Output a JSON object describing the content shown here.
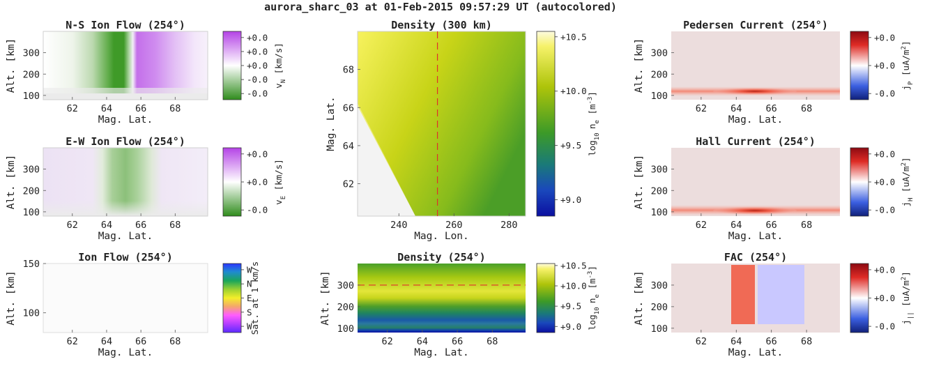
{
  "figure_title": "aurora_sharc_03 at 01-Feb-2015 09:57:29 UT (autocolored)",
  "colors": {
    "green": "#3f9a28",
    "purple": "#c470ea",
    "background_gray": "#ebebeb",
    "current_base": "#ecdddd",
    "current_red": "#ee5a45",
    "current_blue": "#c9c8ff",
    "dashed_line": "#e0302a"
  },
  "chart_data": [
    {
      "id": "ns-ion-flow",
      "type": "heatmap",
      "title": "N-S Ion Flow (254°)",
      "xlabel": "Mag. Lat.",
      "ylabel": "Alt. [km]",
      "xlim": [
        60.3,
        69.9
      ],
      "ylim": [
        80,
        400
      ],
      "xticks": [
        "62",
        "64",
        "66",
        "68"
      ],
      "yticks": [
        "100",
        "200",
        "300"
      ],
      "colorbar": {
        "colormap": "green-white-purple",
        "label": "v_N [km/s]",
        "ticks": [
          "+0.0",
          "+0.0",
          "+0.0",
          "-0.0",
          "-0.0"
        ]
      },
      "description": "flow reverses from southward (green) to northward (purple) near 65° latitude above ~120 km"
    },
    {
      "id": "ew-ion-flow",
      "type": "heatmap",
      "title": "E-W Ion Flow (254°)",
      "xlabel": "Mag. Lat.",
      "ylabel": "Alt. [km]",
      "xlim": [
        60.3,
        69.9
      ],
      "ylim": [
        80,
        400
      ],
      "xticks": [
        "62",
        "64",
        "66",
        "68"
      ],
      "yticks": [
        "100",
        "200",
        "300"
      ],
      "colorbar": {
        "colormap": "green-white-purple",
        "label": "v_E [km/s]",
        "ticks": [
          "+0.0",
          "+0.0",
          "-0.0"
        ]
      },
      "description": "weak westward (green) band centred near 65° latitude"
    },
    {
      "id": "ion-flow",
      "type": "heatmap",
      "title": "Ion Flow (254°)",
      "xlabel": "Mag. Lat.",
      "ylabel": "Alt. [km]",
      "xlim": [
        60.3,
        69.9
      ],
      "ylim": [
        80,
        150
      ],
      "xticks": [
        "62",
        "64",
        "66",
        "68"
      ],
      "yticks": [
        "100",
        "150"
      ],
      "colorbar": {
        "colormap": "direction-wheel",
        "label": "Sat. at 1 km/s",
        "ticks": [
          "W",
          "N",
          "E",
          "S",
          "W"
        ]
      }
    },
    {
      "id": "density-300km",
      "type": "heatmap",
      "title": "Density (300 km)",
      "xlabel": "Mag. Lon.",
      "ylabel": "Mag. Lat.",
      "xlim": [
        225,
        286
      ],
      "ylim": [
        60.3,
        70.0
      ],
      "xticks": [
        "240",
        "260",
        "280"
      ],
      "yticks": [
        "62",
        "64",
        "66",
        "68"
      ],
      "marker_line": {
        "axis": "x",
        "value": 254,
        "style": "dashed"
      },
      "colorbar": {
        "colormap": "blue-green-yellow",
        "label": "log10 n_e [m^-3]",
        "range": [
          8.85,
          10.55
        ],
        "ticks": [
          "+10.5",
          "+10.0",
          "+9.5",
          "+9.0"
        ]
      },
      "description": "density decreases eastward; no-data region at low latitude / low longitude"
    },
    {
      "id": "density-254",
      "type": "heatmap",
      "title": "Density (254°)",
      "xlabel": "Mag. Lat.",
      "ylabel": "Alt. [km]",
      "xlim": [
        60.3,
        69.9
      ],
      "ylim": [
        80,
        400
      ],
      "xticks": [
        "62",
        "64",
        "66",
        "68"
      ],
      "yticks": [
        "100",
        "200",
        "300"
      ],
      "marker_line": {
        "axis": "y",
        "value": 300,
        "style": "dashed"
      },
      "colorbar": {
        "colormap": "blue-green-yellow",
        "label": "log10 n_e [m^-3]",
        "range": [
          8.85,
          10.55
        ],
        "ticks": [
          "+10.5",
          "+10.0",
          "+9.5",
          "+9.0"
        ]
      },
      "description": "peak density (yellow) near 240 km, minimum near 100 km"
    },
    {
      "id": "pedersen-current",
      "type": "heatmap",
      "title": "Pedersen Current (254°)",
      "xlabel": "Mag. Lat.",
      "ylabel": "Alt. [km]",
      "xlim": [
        60.3,
        69.9
      ],
      "ylim": [
        80,
        400
      ],
      "xticks": [
        "62",
        "64",
        "66",
        "68"
      ],
      "yticks": [
        "100",
        "200",
        "300"
      ],
      "colorbar": {
        "colormap": "blue-white-red",
        "label": "j_P [uA/m^2]",
        "ticks": [
          "+0.0",
          "+0.0",
          "-0.0"
        ]
      },
      "description": "thin current layer near 120 km, strongest at 65°"
    },
    {
      "id": "hall-current",
      "type": "heatmap",
      "title": "Hall Current (254°)",
      "xlabel": "Mag. Lat.",
      "ylabel": "Alt. [km]",
      "xlim": [
        60.3,
        69.9
      ],
      "ylim": [
        80,
        400
      ],
      "xticks": [
        "62",
        "64",
        "66",
        "68"
      ],
      "yticks": [
        "100",
        "200",
        "300"
      ],
      "colorbar": {
        "colormap": "blue-white-red",
        "label": "j_H [uA/m^2]",
        "ticks": [
          "+0.0",
          "+0.0",
          "-0.0"
        ]
      },
      "description": "thin current layer near 105 km, strongest at 65°"
    },
    {
      "id": "fac",
      "type": "heatmap",
      "title": "FAC (254°)",
      "xlabel": "Mag. Lat.",
      "ylabel": "Alt. [km]",
      "xlim": [
        60.3,
        69.9
      ],
      "ylim": [
        80,
        400
      ],
      "xticks": [
        "62",
        "64",
        "66",
        "68"
      ],
      "yticks": [
        "100",
        "200",
        "300"
      ],
      "colorbar": {
        "colormap": "blue-white-red",
        "label": "j_|| [uA/m^2]",
        "ticks": [
          "+0.0",
          "+0.0",
          "-0.0"
        ]
      },
      "description": "upward current (red) 63.8–65.0°, downward current (blue) 65.2–68.0°, above ~120 km"
    }
  ]
}
